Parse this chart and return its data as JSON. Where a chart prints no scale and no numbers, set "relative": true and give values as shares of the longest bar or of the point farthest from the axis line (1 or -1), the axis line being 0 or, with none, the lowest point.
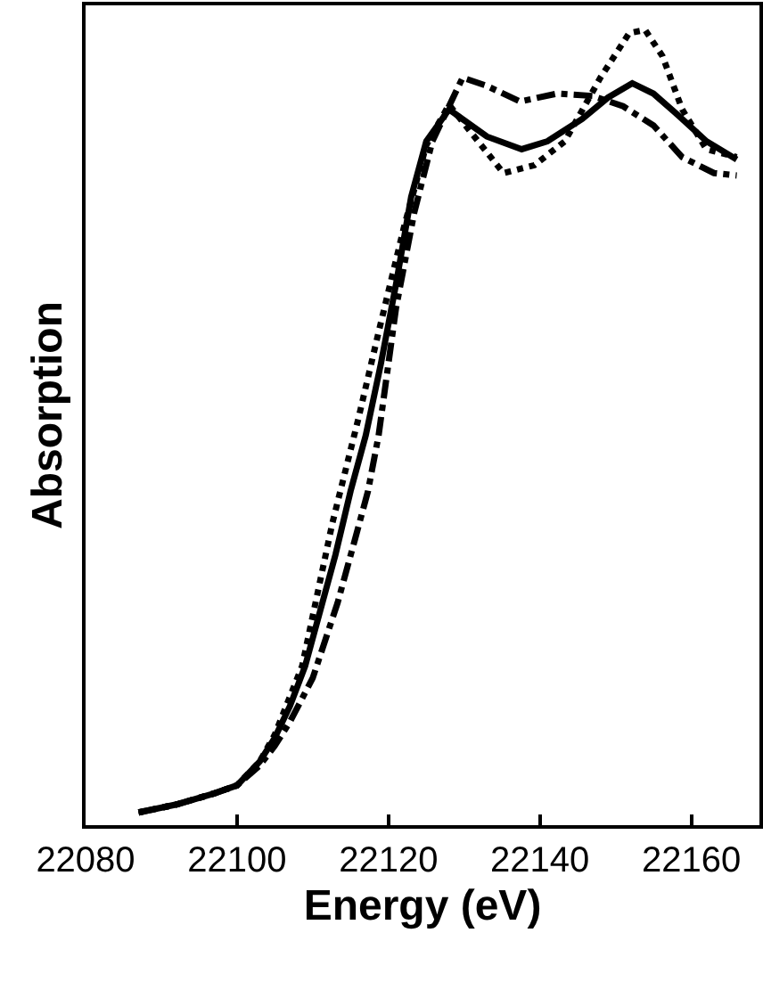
{
  "chart_data": {
    "type": "line",
    "xlabel": "Energy (eV)",
    "ylabel": "Absorption",
    "relative": true,
    "xlim": [
      22080,
      22169
    ],
    "xticks": [
      22080,
      22100,
      22120,
      22140,
      22160
    ],
    "grid": false,
    "marker": "none",
    "series": [
      {
        "color": "#000000",
        "line_style": "solid",
        "x": [
          22087,
          22092,
          22097,
          22100,
          22103,
          22105,
          22107,
          22109,
          22111,
          22113,
          22115,
          22117,
          22119,
          22121,
          22123,
          22125,
          22128,
          22133,
          22137.6,
          22141,
          22145.6,
          22149,
          22152.2,
          22155,
          22158,
          22162,
          22166
        ],
        "values": [
          0.016,
          0.026,
          0.04,
          0.05,
          0.08,
          0.11,
          0.15,
          0.2,
          0.27,
          0.34,
          0.42,
          0.49,
          0.58,
          0.68,
          0.79,
          0.86,
          0.9,
          0.866,
          0.85,
          0.86,
          0.888,
          0.915,
          0.933,
          0.92,
          0.895,
          0.86,
          0.837
        ]
      },
      {
        "color": "#000000",
        "line_style": "dotted",
        "x": [
          22087,
          22092,
          22097,
          22100,
          22103,
          22105,
          22108.6,
          22112.6,
          22116,
          22118.7,
          22122,
          22125,
          22128,
          22131,
          22135.2,
          22139.3,
          22143.3,
          22148,
          22151.8,
          22153.9,
          22156.2,
          22158.8,
          22162,
          22166
        ],
        "values": [
          0.016,
          0.026,
          0.04,
          0.05,
          0.08,
          0.114,
          0.2,
          0.38,
          0.51,
          0.62,
          0.75,
          0.855,
          0.906,
          0.87,
          0.82,
          0.83,
          0.86,
          0.94,
          0.996,
          1,
          0.967,
          0.9,
          0.85,
          0.84
        ]
      },
      {
        "color": "#000000",
        "line_style": "dashdot",
        "x": [
          22087,
          22092,
          22097,
          22100,
          22103,
          22105,
          22107,
          22110,
          22113.3,
          22115.6,
          22117.3,
          22118.7,
          22121,
          22123.4,
          22125.8,
          22129.8,
          22132.9,
          22137.4,
          22142.3,
          22147,
          22151,
          22155,
          22158.8,
          22163,
          22166
        ],
        "values": [
          0.016,
          0.026,
          0.04,
          0.05,
          0.075,
          0.1,
          0.13,
          0.185,
          0.28,
          0.36,
          0.42,
          0.49,
          0.65,
          0.77,
          0.86,
          0.94,
          0.93,
          0.91,
          0.92,
          0.917,
          0.904,
          0.88,
          0.84,
          0.82,
          0.817
        ]
      }
    ]
  }
}
